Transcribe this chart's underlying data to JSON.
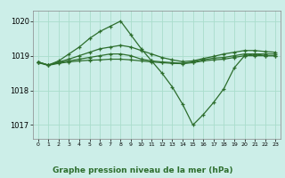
{
  "title": "Graphe pression niveau de la mer (hPa)",
  "background_color": "#cceee8",
  "grid_color": "#aaddcc",
  "line_color": "#2d6e2d",
  "xlim": [
    -0.5,
    23.5
  ],
  "ylim": [
    1016.6,
    1020.3
  ],
  "yticks": [
    1017,
    1018,
    1019,
    1020
  ],
  "xticks": [
    0,
    1,
    2,
    3,
    4,
    5,
    6,
    7,
    8,
    9,
    10,
    11,
    12,
    13,
    14,
    15,
    16,
    17,
    18,
    19,
    20,
    21,
    22,
    23
  ],
  "series": [
    {
      "x": [
        0,
        1,
        2,
        3,
        4,
        5,
        6,
        7,
        8,
        9,
        10,
        11,
        12,
        13,
        14,
        15,
        16,
        17,
        18,
        19,
        20,
        21,
        22,
        23
      ],
      "y": [
        1018.8,
        1018.72,
        1018.78,
        1018.82,
        1018.85,
        1018.87,
        1018.88,
        1018.9,
        1018.9,
        1018.88,
        1018.85,
        1018.82,
        1018.8,
        1018.78,
        1018.77,
        1018.8,
        1018.85,
        1018.88,
        1018.9,
        1018.95,
        1019.0,
        1019.0,
        1019.0,
        1019.0
      ]
    },
    {
      "x": [
        0,
        1,
        2,
        3,
        4,
        5,
        6,
        7,
        8,
        9,
        10,
        11,
        12,
        13,
        14,
        15,
        16,
        17,
        18,
        19,
        20,
        21,
        22,
        23
      ],
      "y": [
        1018.82,
        1018.73,
        1018.8,
        1018.85,
        1018.9,
        1018.95,
        1019.0,
        1019.05,
        1019.05,
        1019.0,
        1018.9,
        1018.85,
        1018.82,
        1018.8,
        1018.78,
        1018.82,
        1018.88,
        1018.93,
        1018.95,
        1019.0,
        1019.05,
        1019.05,
        1019.05,
        1019.05
      ]
    },
    {
      "x": [
        0,
        1,
        2,
        3,
        4,
        5,
        6,
        7,
        8,
        9,
        10,
        11,
        12,
        13,
        14,
        15,
        16,
        17,
        18,
        19,
        20,
        21,
        22,
        23
      ],
      "y": [
        1018.82,
        1018.73,
        1018.82,
        1018.9,
        1019.0,
        1019.1,
        1019.2,
        1019.25,
        1019.3,
        1019.25,
        1019.15,
        1019.05,
        1018.95,
        1018.88,
        1018.83,
        1018.85,
        1018.92,
        1018.98,
        1019.05,
        1019.1,
        1019.15,
        1019.15,
        1019.12,
        1019.1
      ]
    },
    {
      "x": [
        0,
        1,
        2,
        3,
        4,
        5,
        6,
        7,
        8,
        9,
        10,
        11,
        12,
        13,
        14,
        15,
        16,
        17,
        18,
        19,
        20,
        21,
        22,
        23
      ],
      "y": [
        1018.82,
        1018.73,
        1018.85,
        1019.05,
        1019.25,
        1019.5,
        1019.7,
        1019.85,
        1020.0,
        1019.6,
        1019.2,
        1018.85,
        1018.5,
        1018.1,
        1017.6,
        1017.0,
        1017.3,
        1017.65,
        1018.05,
        1018.65,
        1019.0,
        1019.05,
        1019.0,
        1019.0
      ]
    }
  ]
}
